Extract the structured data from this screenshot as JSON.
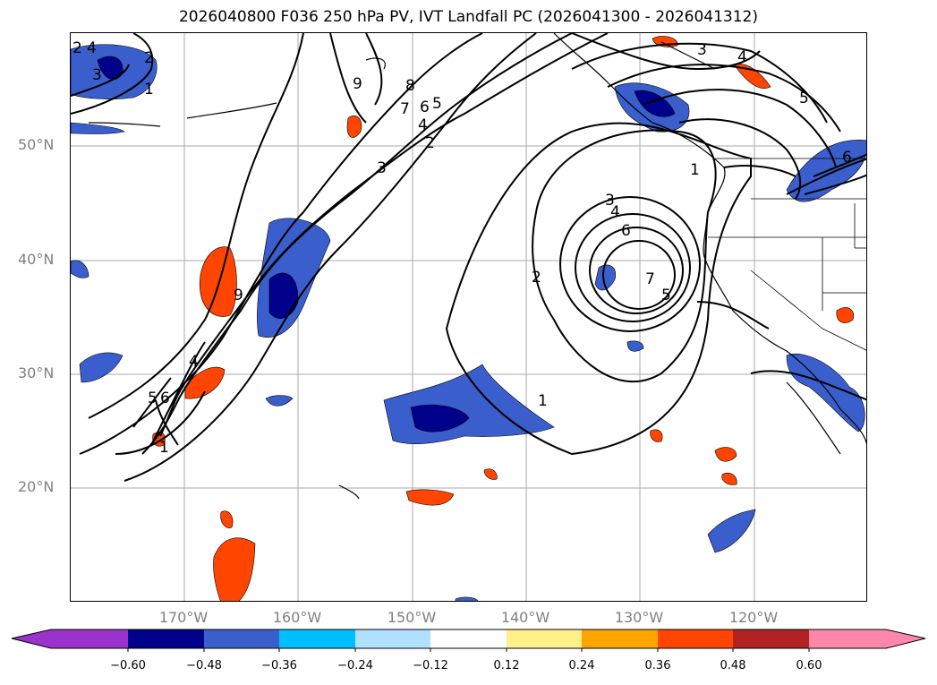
{
  "title": "2026040800 F036 250 hPa PV, IVT Landfall PC (2026041300 - 2026041312)",
  "map": {
    "projection": "plate-carree",
    "lon_range": [
      -180,
      -110
    ],
    "lat_range": [
      10,
      60
    ],
    "lat_labels": [
      "50°N",
      "40°N",
      "30°N",
      "20°N"
    ],
    "lon_labels": [
      "170°W",
      "160°W",
      "150°W",
      "140°W",
      "130°W",
      "120°W"
    ],
    "gridlines": true
  },
  "contours": {
    "color": "#000000",
    "labels": [
      "2",
      "4",
      "3",
      "2",
      "1",
      "9",
      "8",
      "7",
      "6",
      "5",
      "4",
      "2",
      "3",
      "3",
      "4",
      "5",
      "1",
      "6",
      "3",
      "4",
      "6",
      "7",
      "5",
      "2",
      "1",
      "9",
      "4",
      "5",
      "6",
      "1"
    ]
  },
  "colorbar": {
    "extend": "both",
    "ticks": [
      "−0.60",
      "−0.48",
      "−0.36",
      "−0.24",
      "−0.12",
      "0.12",
      "0.24",
      "0.36",
      "0.48",
      "0.60"
    ],
    "colors": [
      "#9933cc",
      "#00008b",
      "#3a5fcd",
      "#00bfff",
      "#b0e2ff",
      "#ffffff",
      "#fff08a",
      "#ffa500",
      "#ff4500",
      "#b22222",
      "#ff88aa"
    ]
  }
}
